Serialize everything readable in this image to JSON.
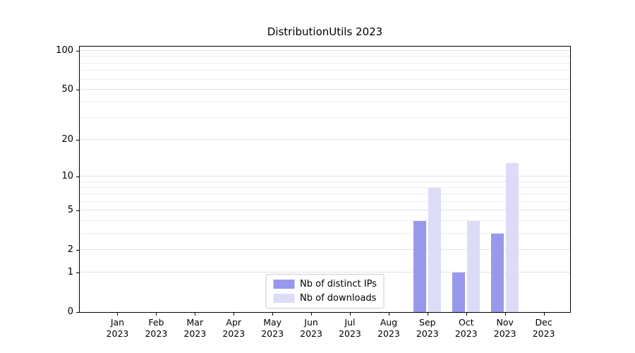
{
  "chart_data": {
    "type": "bar",
    "title": "DistributionUtils 2023",
    "categories": [
      "Jan",
      "Feb",
      "Mar",
      "Apr",
      "May",
      "Jun",
      "Jul",
      "Aug",
      "Sep",
      "Oct",
      "Nov",
      "Dec"
    ],
    "x_year": "2023",
    "series": [
      {
        "name": "Nb of distinct IPs",
        "color": "#9898ee",
        "values": [
          0,
          0,
          0,
          0,
          0,
          0,
          0,
          0,
          4,
          1,
          3,
          0
        ]
      },
      {
        "name": "Nb of downloads",
        "color": "#dcdcf8",
        "values": [
          0,
          0,
          0,
          0,
          0,
          0,
          0,
          0,
          8,
          4,
          13,
          0
        ]
      }
    ],
    "yscale": "log1p",
    "y_ticks": [
      0,
      1,
      2,
      5,
      10,
      20,
      50,
      100
    ],
    "y_minor_gridlines": [
      3,
      4,
      6,
      7,
      8,
      9,
      30,
      40,
      60,
      70,
      80,
      90
    ],
    "ylim": [
      0,
      108
    ],
    "grid": true,
    "legend_position": "lower center"
  }
}
